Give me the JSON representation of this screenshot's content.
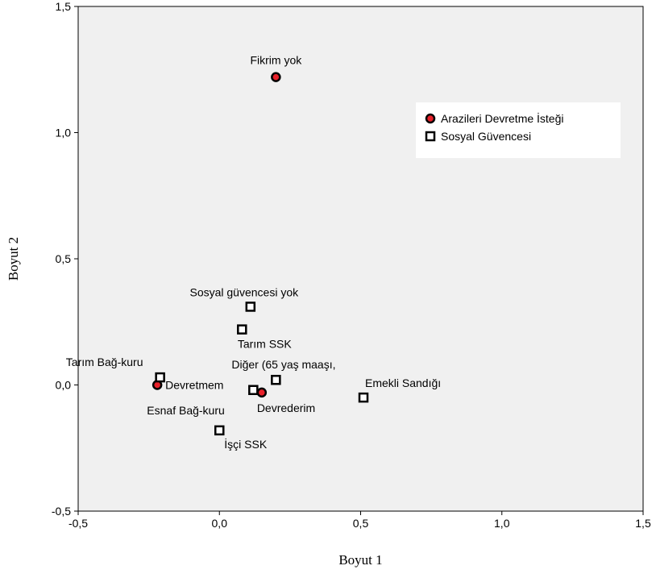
{
  "chart_data": {
    "type": "scatter",
    "xlabel": "Boyut 1",
    "ylabel": "Boyut 2",
    "xlim": [
      -0.5,
      1.5
    ],
    "ylim": [
      -0.5,
      1.5
    ],
    "x_ticks": [
      "-0,5",
      "0,0",
      "0,5",
      "1,0",
      "1,5"
    ],
    "y_ticks": [
      "-0,5",
      "0,0",
      "0,5",
      "1,0",
      "1,5"
    ],
    "grid": false,
    "legend_position": "top-right",
    "colors": {
      "plot_background": "#f0f0f0",
      "circle_fill": "#e8212a",
      "square_fill": "#ffffff",
      "marker_stroke": "#000000"
    },
    "series": [
      {
        "name": "Arazileri Devretme İsteği",
        "marker": "circle",
        "points": [
          {
            "label": "Fikrim yok",
            "x": 0.2,
            "y": 1.22
          },
          {
            "label": "Devretmem",
            "x": -0.22,
            "y": 0.0
          },
          {
            "label": "Devrederim",
            "x": 0.15,
            "y": -0.03
          }
        ]
      },
      {
        "name": "Sosyal Güvencesi",
        "marker": "square",
        "points": [
          {
            "label": "Sosyal güvencesi yok",
            "x": 0.11,
            "y": 0.31
          },
          {
            "label": "Tarım SSK",
            "x": 0.08,
            "y": 0.22
          },
          {
            "label": "Tarım Bağ-kuru",
            "x": -0.21,
            "y": 0.03
          },
          {
            "label": "Diğer (65 yaş maaşı,",
            "x": 0.2,
            "y": 0.02
          },
          {
            "label": "Esnaf Bağ-kuru",
            "x": 0.12,
            "y": -0.02
          },
          {
            "label": "Emekli Sandığı",
            "x": 0.51,
            "y": -0.05
          },
          {
            "label": "İşçi SSK",
            "x": 0.0,
            "y": -0.18
          }
        ]
      }
    ]
  }
}
